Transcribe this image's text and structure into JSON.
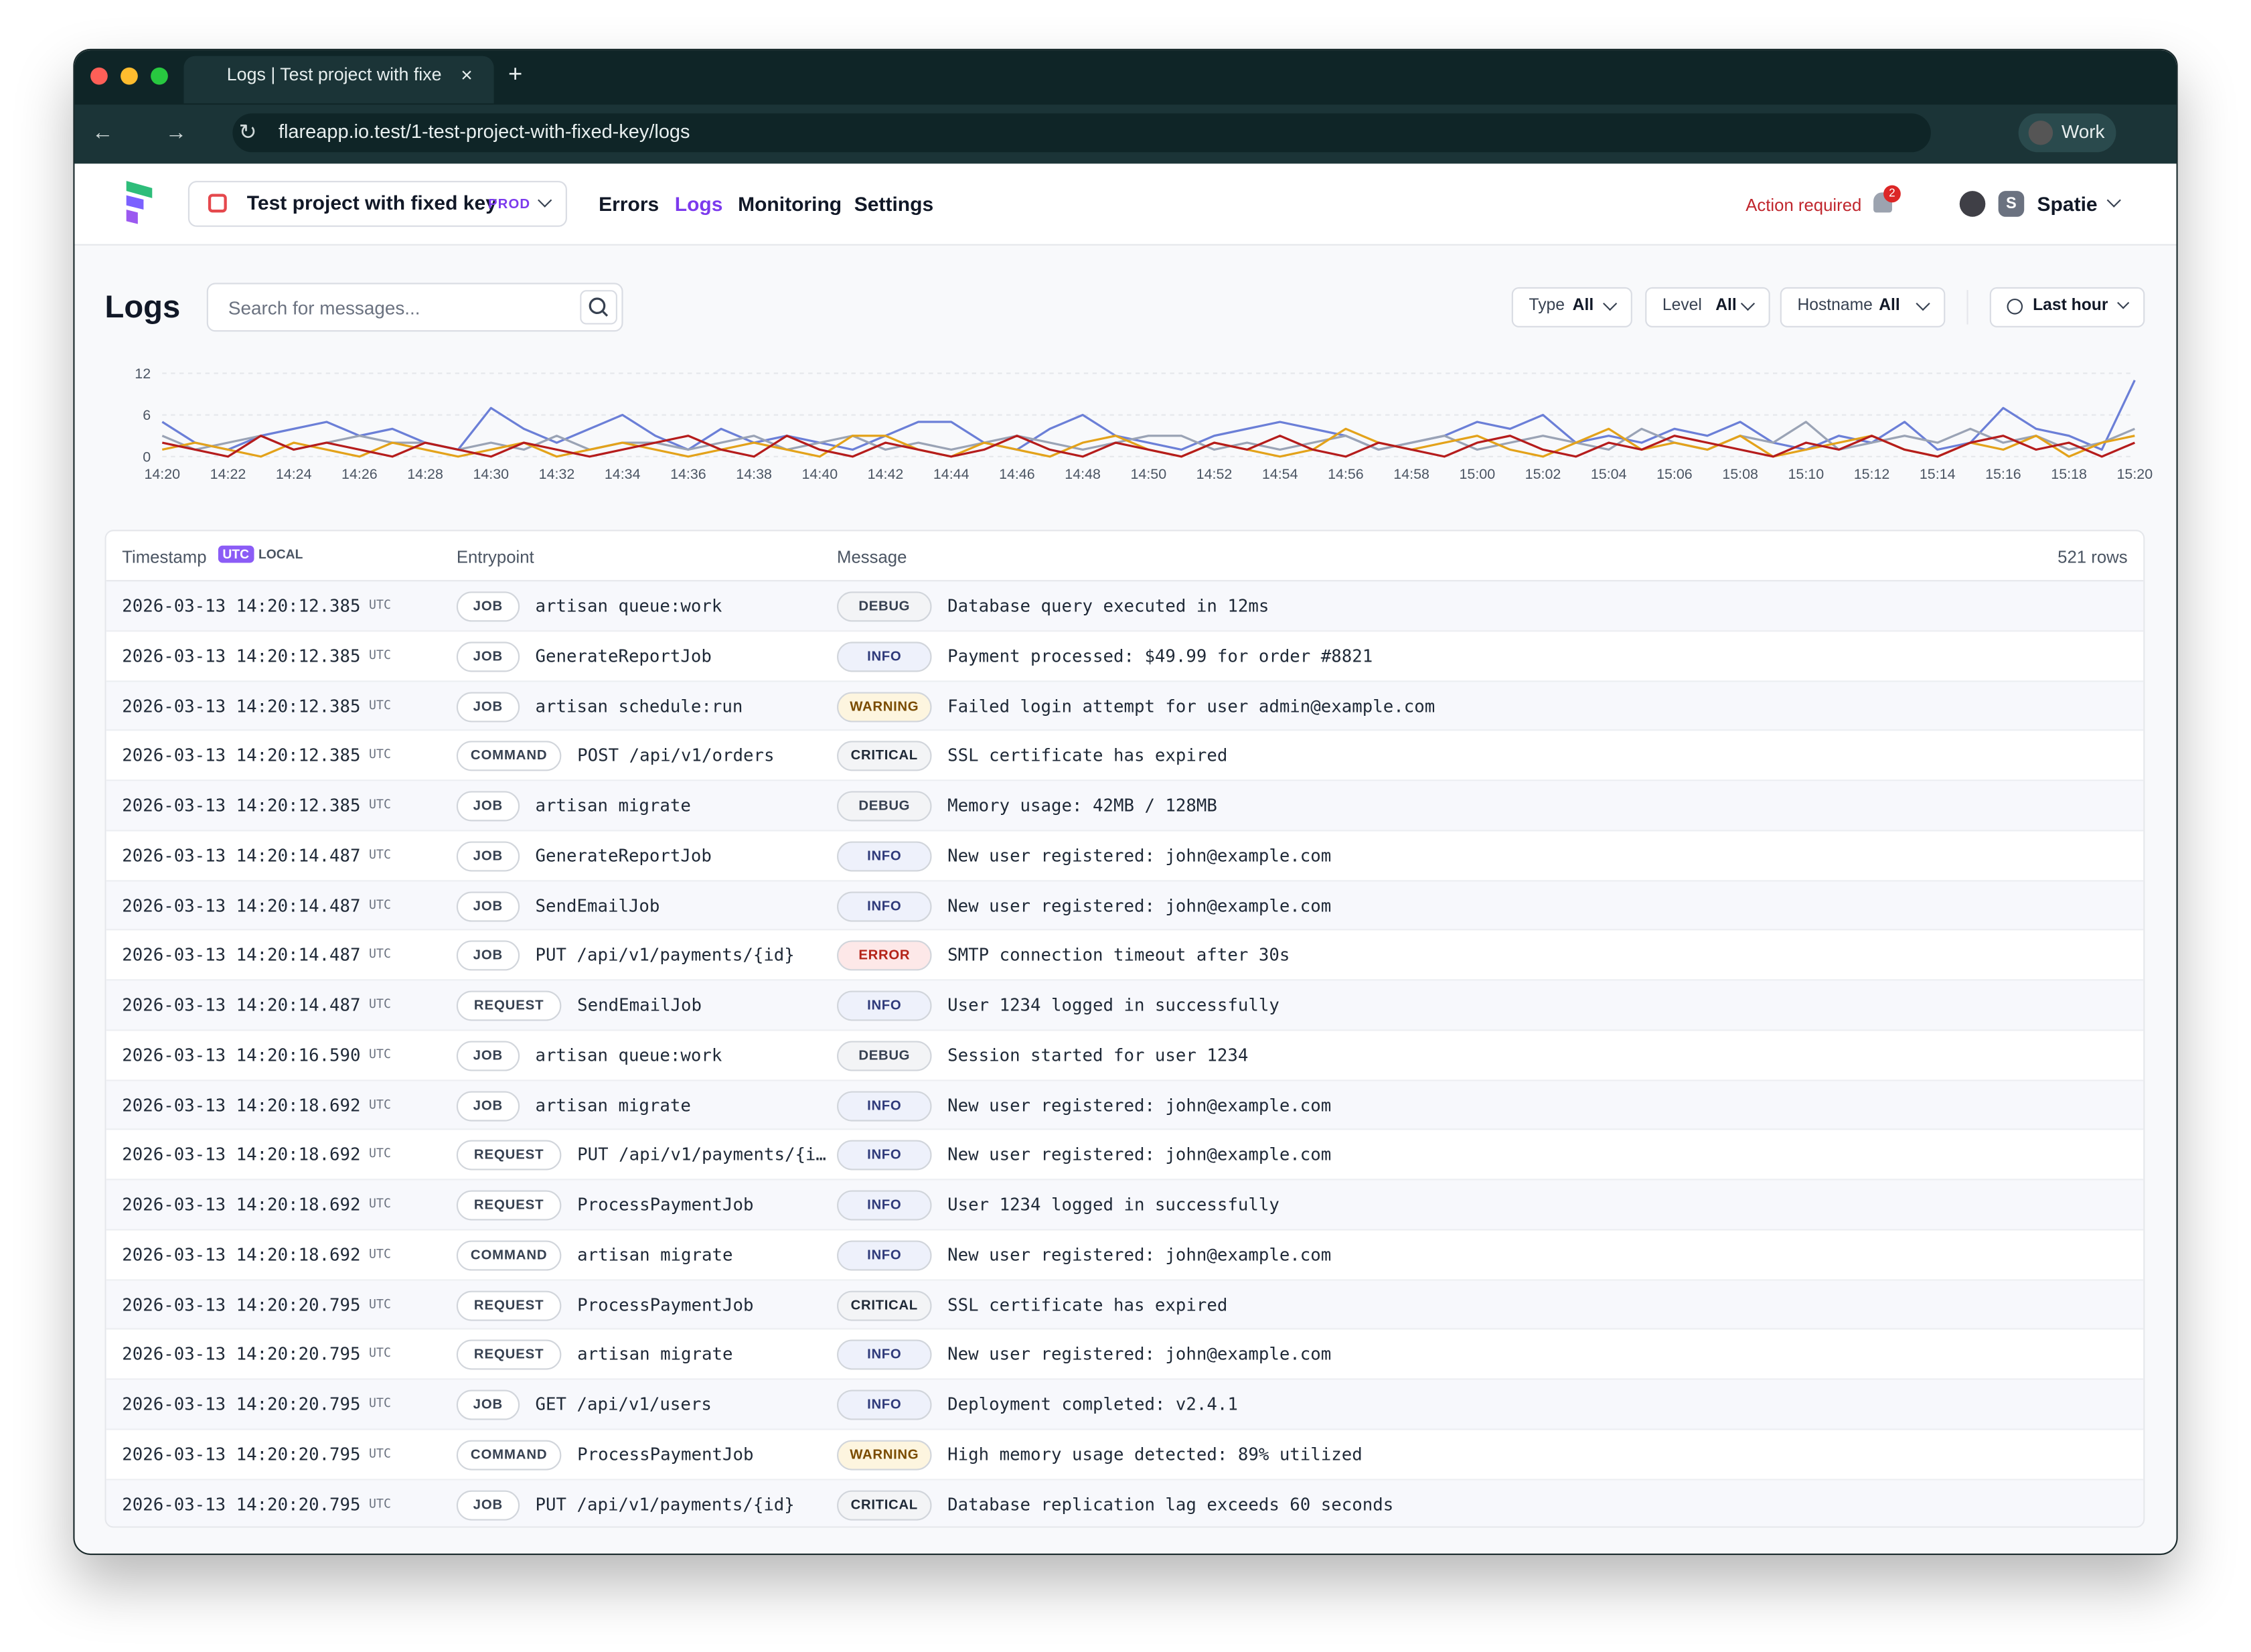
{
  "browser": {
    "tab_title": "Logs | Test project with fixed",
    "new_tab": "+",
    "url": "flareapp.io.test/1-test-project-with-fixed-key/logs",
    "profile": "Work"
  },
  "nav": {
    "project": "Test project with fixed key",
    "environment": "PROD",
    "links": [
      "Errors",
      "Logs",
      "Monitoring",
      "Settings"
    ],
    "active_link": 1,
    "action_required": "Action required",
    "notification_count": 2,
    "team_initial": "S",
    "team": "Spatie"
  },
  "toolbar": {
    "title": "Logs",
    "search_placeholder": "Search for messages...",
    "filters": [
      {
        "label": "Type",
        "value": "All"
      },
      {
        "label": "Level",
        "value": "All"
      },
      {
        "label": "Hostname",
        "value": "All"
      }
    ],
    "time_range": "Last hour"
  },
  "chart_data": {
    "type": "line",
    "categories": [
      "14:20",
      null,
      "14:22",
      null,
      "14:24",
      null,
      "14:26",
      null,
      "14:28",
      null,
      "14:30",
      null,
      "14:32",
      null,
      "14:34",
      null,
      "14:36",
      null,
      "14:38",
      null,
      "14:40",
      null,
      "14:42",
      null,
      "14:44",
      null,
      "14:46",
      null,
      "14:48",
      null,
      "14:50",
      null,
      "14:52",
      null,
      "14:54",
      null,
      "14:56",
      null,
      "14:58",
      null,
      "15:00",
      null,
      "15:02",
      null,
      "15:04",
      null,
      "15:06",
      null,
      "15:08",
      null,
      "15:10",
      null,
      "15:12",
      null,
      "15:14",
      null,
      "15:16",
      null,
      "15:18",
      null,
      "15:20"
    ],
    "series": [
      {
        "color": "#6b7fd7",
        "values": [
          5,
          2,
          1,
          3,
          4,
          5,
          3,
          4,
          2,
          1,
          7,
          4,
          2,
          4,
          6,
          3,
          1,
          4,
          2,
          3,
          2,
          1,
          3,
          5,
          5,
          2,
          1,
          4,
          6,
          3,
          2,
          1,
          3,
          4,
          5,
          4,
          3,
          1,
          2,
          3,
          5,
          4,
          6,
          2,
          3,
          2,
          4,
          3,
          5,
          2,
          1,
          3,
          2,
          5,
          1,
          2,
          7,
          4,
          3,
          1,
          11
        ]
      },
      {
        "color": "#9aa3b5",
        "values": [
          3,
          1,
          2,
          3,
          1,
          2,
          3,
          2,
          2,
          1,
          2,
          1,
          3,
          1,
          2,
          2,
          1,
          2,
          3,
          1,
          2,
          3,
          1,
          2,
          1,
          2,
          3,
          2,
          1,
          2,
          3,
          3,
          1,
          2,
          1,
          2,
          3,
          1,
          2,
          3,
          1,
          2,
          3,
          2,
          1,
          4,
          2,
          1,
          3,
          2,
          5,
          1,
          2,
          3,
          2,
          4,
          2,
          3,
          1,
          2,
          4
        ]
      },
      {
        "color": "#e3a21a",
        "values": [
          1,
          2,
          1,
          0,
          2,
          1,
          0,
          2,
          1,
          0,
          1,
          2,
          0,
          1,
          2,
          1,
          0,
          1,
          2,
          1,
          0,
          3,
          3,
          1,
          0,
          2,
          1,
          0,
          2,
          3,
          1,
          0,
          2,
          1,
          0,
          1,
          4,
          2,
          1,
          2,
          3,
          1,
          0,
          2,
          4,
          1,
          2,
          1,
          3,
          0,
          1,
          2,
          3,
          1,
          0,
          2,
          1,
          3,
          0,
          2,
          3
        ]
      },
      {
        "color": "#b51c1c",
        "values": [
          2,
          1,
          0,
          3,
          1,
          2,
          1,
          0,
          2,
          1,
          0,
          2,
          1,
          0,
          1,
          2,
          3,
          1,
          0,
          3,
          1,
          0,
          2,
          1,
          0,
          1,
          3,
          1,
          0,
          2,
          1,
          0,
          2,
          1,
          3,
          1,
          0,
          2,
          1,
          0,
          2,
          3,
          1,
          0,
          2,
          1,
          3,
          2,
          1,
          0,
          2,
          1,
          3,
          1,
          0,
          2,
          3,
          1,
          2,
          0,
          2
        ]
      }
    ],
    "ylim": [
      0,
      12
    ],
    "yticks": [
      0,
      6,
      12
    ],
    "grid": true
  },
  "table": {
    "columns": {
      "timestamp": "Timestamp",
      "utc": "UTC",
      "local": "LOCAL",
      "entrypoint": "Entrypoint",
      "message": "Message"
    },
    "row_count": "521 rows",
    "level_colors": {
      "DEBUG": [
        "#f3f4f6",
        "#374151"
      ],
      "INFO": [
        "#eef1fb",
        "#2f3a7a"
      ],
      "WARNING": [
        "#fdf5df",
        "#7a4b00"
      ],
      "CRITICAL": [
        "#f3f4f6",
        "#1f2937"
      ],
      "ERROR": [
        "#fde8e8",
        "#b42318"
      ]
    },
    "rows": [
      {
        "timestamp": "2026-03-13 14:20:12.385",
        "zone": "UTC",
        "type": "JOB",
        "entrypoint": "artisan queue:work",
        "level": "DEBUG",
        "message": "Database query executed in 12ms"
      },
      {
        "timestamp": "2026-03-13 14:20:12.385",
        "zone": "UTC",
        "type": "JOB",
        "entrypoint": "GenerateReportJob",
        "level": "INFO",
        "message": "Payment processed: $49.99 for order #8821"
      },
      {
        "timestamp": "2026-03-13 14:20:12.385",
        "zone": "UTC",
        "type": "JOB",
        "entrypoint": "artisan schedule:run",
        "level": "WARNING",
        "message": "Failed login attempt for user admin@example.com"
      },
      {
        "timestamp": "2026-03-13 14:20:12.385",
        "zone": "UTC",
        "type": "COMMAND",
        "entrypoint": "POST /api/v1/orders",
        "level": "CRITICAL",
        "message": "SSL certificate has expired"
      },
      {
        "timestamp": "2026-03-13 14:20:12.385",
        "zone": "UTC",
        "type": "JOB",
        "entrypoint": "artisan migrate",
        "level": "DEBUG",
        "message": "Memory usage: 42MB / 128MB"
      },
      {
        "timestamp": "2026-03-13 14:20:14.487",
        "zone": "UTC",
        "type": "JOB",
        "entrypoint": "GenerateReportJob",
        "level": "INFO",
        "message": "New user registered: john@example.com"
      },
      {
        "timestamp": "2026-03-13 14:20:14.487",
        "zone": "UTC",
        "type": "JOB",
        "entrypoint": "SendEmailJob",
        "level": "INFO",
        "message": "New user registered: john@example.com"
      },
      {
        "timestamp": "2026-03-13 14:20:14.487",
        "zone": "UTC",
        "type": "JOB",
        "entrypoint": "PUT /api/v1/payments/{id}",
        "level": "ERROR",
        "message": "SMTP connection timeout after 30s"
      },
      {
        "timestamp": "2026-03-13 14:20:14.487",
        "zone": "UTC",
        "type": "REQUEST",
        "entrypoint": "SendEmailJob",
        "level": "INFO",
        "message": "User 1234 logged in successfully"
      },
      {
        "timestamp": "2026-03-13 14:20:16.590",
        "zone": "UTC",
        "type": "JOB",
        "entrypoint": "artisan queue:work",
        "level": "DEBUG",
        "message": "Session started for user 1234"
      },
      {
        "timestamp": "2026-03-13 14:20:18.692",
        "zone": "UTC",
        "type": "JOB",
        "entrypoint": "artisan migrate",
        "level": "INFO",
        "message": "New user registered: john@example.com"
      },
      {
        "timestamp": "2026-03-13 14:20:18.692",
        "zone": "UTC",
        "type": "REQUEST",
        "entrypoint": "PUT /api/v1/payments/{i…",
        "level": "INFO",
        "message": "New user registered: john@example.com"
      },
      {
        "timestamp": "2026-03-13 14:20:18.692",
        "zone": "UTC",
        "type": "REQUEST",
        "entrypoint": "ProcessPaymentJob",
        "level": "INFO",
        "message": "User 1234 logged in successfully"
      },
      {
        "timestamp": "2026-03-13 14:20:18.692",
        "zone": "UTC",
        "type": "COMMAND",
        "entrypoint": "artisan migrate",
        "level": "INFO",
        "message": "New user registered: john@example.com"
      },
      {
        "timestamp": "2026-03-13 14:20:20.795",
        "zone": "UTC",
        "type": "REQUEST",
        "entrypoint": "ProcessPaymentJob",
        "level": "CRITICAL",
        "message": "SSL certificate has expired"
      },
      {
        "timestamp": "2026-03-13 14:20:20.795",
        "zone": "UTC",
        "type": "REQUEST",
        "entrypoint": "artisan migrate",
        "level": "INFO",
        "message": "New user registered: john@example.com"
      },
      {
        "timestamp": "2026-03-13 14:20:20.795",
        "zone": "UTC",
        "type": "JOB",
        "entrypoint": "GET /api/v1/users",
        "level": "INFO",
        "message": "Deployment completed: v2.4.1"
      },
      {
        "timestamp": "2026-03-13 14:20:20.795",
        "zone": "UTC",
        "type": "COMMAND",
        "entrypoint": "ProcessPaymentJob",
        "level": "WARNING",
        "message": "High memory usage detected: 89% utilized"
      },
      {
        "timestamp": "2026-03-13 14:20:20.795",
        "zone": "UTC",
        "type": "JOB",
        "entrypoint": "PUT /api/v1/payments/{id}",
        "level": "CRITICAL",
        "message": "Database replication lag exceeds 60 seconds"
      }
    ]
  }
}
